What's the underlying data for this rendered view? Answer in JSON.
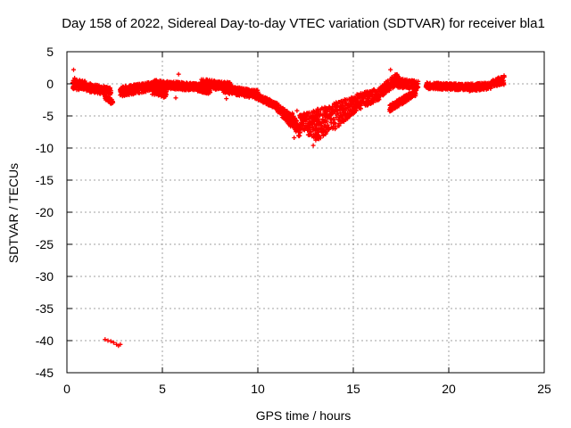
{
  "chart_data": {
    "type": "scatter",
    "title": "Day 158 of 2022, Sidereal Day-to-day VTEC variation (SDTVAR) for receiver bla1",
    "xlabel": "GPS time / hours",
    "ylabel": "SDTVAR / TECUs",
    "xlim": [
      0,
      25
    ],
    "ylim": [
      -45,
      5
    ],
    "xticks": [
      0,
      5,
      10,
      15,
      20,
      25
    ],
    "yticks": [
      5,
      0,
      -5,
      -10,
      -15,
      -20,
      -25,
      -30,
      -35,
      -40,
      -45
    ],
    "grid": true,
    "marker": "+",
    "series": [
      {
        "name": "SDTVAR",
        "color": "#ff0000",
        "bands": [
          {
            "x": [
              0.3,
              1.0
            ],
            "y_top": [
              0.8,
              0.4
            ],
            "y_bot": [
              -1.0,
              -0.9
            ]
          },
          {
            "x": [
              1.0,
              2.3
            ],
            "y_top": [
              0.2,
              -0.6
            ],
            "y_bot": [
              -1.2,
              -1.8
            ]
          },
          {
            "x": [
              2.0,
              2.4
            ],
            "y_top": [
              -1.8,
              -2.4
            ],
            "y_bot": [
              -2.4,
              -3.3
            ]
          },
          {
            "x": [
              2.8,
              4.6
            ],
            "y_top": [
              -0.4,
              0.4
            ],
            "y_bot": [
              -2.0,
              -1.0
            ]
          },
          {
            "x": [
              4.4,
              5.2
            ],
            "y_top": [
              0.6,
              -0.6
            ],
            "y_bot": [
              -1.6,
              -2.2
            ]
          },
          {
            "x": [
              4.6,
              7.0
            ],
            "y_top": [
              0.6,
              0.0
            ],
            "y_bot": [
              -0.6,
              -1.2
            ]
          },
          {
            "x": [
              6.8,
              7.5
            ],
            "y_top": [
              0.0,
              -0.6
            ],
            "y_bot": [
              -1.2,
              -1.6
            ]
          },
          {
            "x": [
              7.0,
              8.6
            ],
            "y_top": [
              0.8,
              0.2
            ],
            "y_bot": [
              -0.8,
              -1.0
            ]
          },
          {
            "x": [
              8.2,
              10.0
            ],
            "y_top": [
              -0.2,
              -1.0
            ],
            "y_bot": [
              -1.4,
              -2.4
            ]
          },
          {
            "x": [
              10.0,
              11.0
            ],
            "y_top": [
              -1.5,
              -3.0
            ],
            "y_bot": [
              -2.5,
              -4.0
            ]
          },
          {
            "x": [
              11.0,
              11.8
            ],
            "y_top": [
              -3.0,
              -4.8
            ],
            "y_bot": [
              -4.2,
              -7.0
            ]
          },
          {
            "x": [
              11.8,
              12.2
            ],
            "y_top": [
              -4.5,
              -6.5
            ],
            "y_bot": [
              -6.5,
              -8.5
            ]
          },
          {
            "x": [
              12.2,
              13.2
            ],
            "y_top": [
              -4.8,
              -4.0
            ],
            "y_bot": [
              -7.0,
              -9.2
            ]
          },
          {
            "x": [
              13.0,
              14.0
            ],
            "y_top": [
              -4.0,
              -3.2
            ],
            "y_bot": [
              -9.0,
              -7.2
            ]
          },
          {
            "x": [
              14.0,
              15.2
            ],
            "y_top": [
              -3.0,
              -1.8
            ],
            "y_bot": [
              -7.2,
              -4.2
            ]
          },
          {
            "x": [
              15.2,
              16.4
            ],
            "y_top": [
              -1.6,
              -0.6
            ],
            "y_bot": [
              -4.2,
              -2.4
            ]
          },
          {
            "x": [
              16.4,
              17.3
            ],
            "y_top": [
              -0.5,
              1.8
            ],
            "y_bot": [
              -2.2,
              -0.2
            ]
          },
          {
            "x": [
              17.3,
              18.4
            ],
            "y_top": [
              1.0,
              0.4
            ],
            "y_bot": [
              -0.6,
              -0.8
            ]
          },
          {
            "x": [
              16.9,
              18.3
            ],
            "y_top": [
              -3.2,
              -0.8
            ],
            "y_bot": [
              -4.4,
              -1.8
            ]
          },
          {
            "x": [
              18.8,
              21.0
            ],
            "y_top": [
              0.2,
              0.0
            ],
            "y_bot": [
              -0.8,
              -1.0
            ]
          },
          {
            "x": [
              21.0,
              22.2
            ],
            "y_top": [
              0.0,
              0.2
            ],
            "y_bot": [
              -1.2,
              -0.8
            ]
          },
          {
            "x": [
              22.2,
              22.9
            ],
            "y_top": [
              0.4,
              1.4
            ],
            "y_bot": [
              -0.4,
              -0.2
            ]
          }
        ],
        "points": [
          {
            "x": 0.35,
            "y": 2.2
          },
          {
            "x": 0.4,
            "y": 0.9
          },
          {
            "x": 2.0,
            "y": -39.8
          },
          {
            "x": 2.15,
            "y": -40.0
          },
          {
            "x": 2.3,
            "y": -40.1
          },
          {
            "x": 2.45,
            "y": -40.3
          },
          {
            "x": 2.6,
            "y": -40.6
          },
          {
            "x": 2.7,
            "y": -40.8
          },
          {
            "x": 2.8,
            "y": -40.6
          },
          {
            "x": 5.85,
            "y": 1.5
          },
          {
            "x": 5.7,
            "y": -2.2
          },
          {
            "x": 8.35,
            "y": -2.3
          },
          {
            "x": 11.9,
            "y": -8.4
          },
          {
            "x": 12.05,
            "y": -4.2
          },
          {
            "x": 12.9,
            "y": -9.6
          },
          {
            "x": 13.3,
            "y": -4.0
          },
          {
            "x": 16.95,
            "y": 2.2
          }
        ]
      }
    ]
  }
}
